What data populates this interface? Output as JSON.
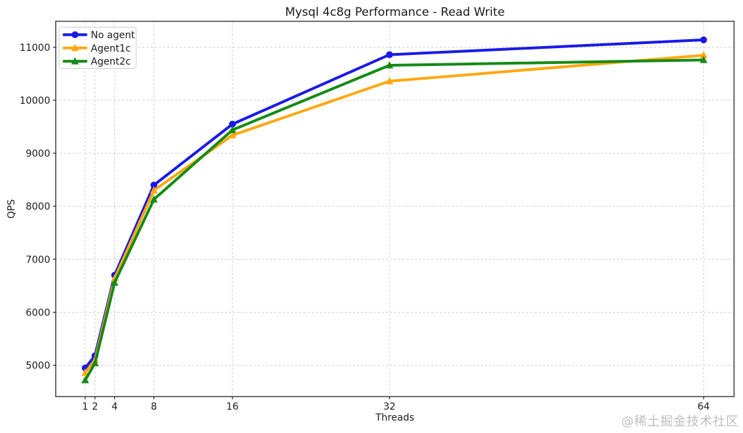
{
  "chart_data": {
    "type": "line",
    "title": "Mysql 4c8g Performance - Read Write",
    "xlabel": "Threads",
    "ylabel": "QPS",
    "x": [
      1,
      2,
      4,
      8,
      16,
      32,
      64
    ],
    "series": [
      {
        "name": "No agent",
        "color": "#1a1ae6",
        "marker": "circle",
        "values": [
          4950,
          5180,
          6700,
          8400,
          9550,
          10860,
          11140
        ]
      },
      {
        "name": "Agent1c",
        "color": "#ffa811",
        "marker": "triangle",
        "values": [
          4860,
          5100,
          6640,
          8300,
          9340,
          10360,
          10850
        ]
      },
      {
        "name": "Agent2c",
        "color": "#158a15",
        "marker": "triangle",
        "values": [
          4720,
          5040,
          6560,
          8130,
          9440,
          10660,
          10760
        ]
      }
    ],
    "xticks": [
      1,
      2,
      4,
      8,
      16,
      32,
      64
    ],
    "yticks": [
      5000,
      6000,
      7000,
      8000,
      9000,
      10000,
      11000
    ],
    "xlim": [
      -2.0,
      67.1
    ],
    "ylim": [
      4410,
      11490
    ],
    "grid": true,
    "grid_style": "dashed",
    "legend_position": "upper-left"
  },
  "watermark": {
    "text": "@稀土掘金技术社区"
  }
}
